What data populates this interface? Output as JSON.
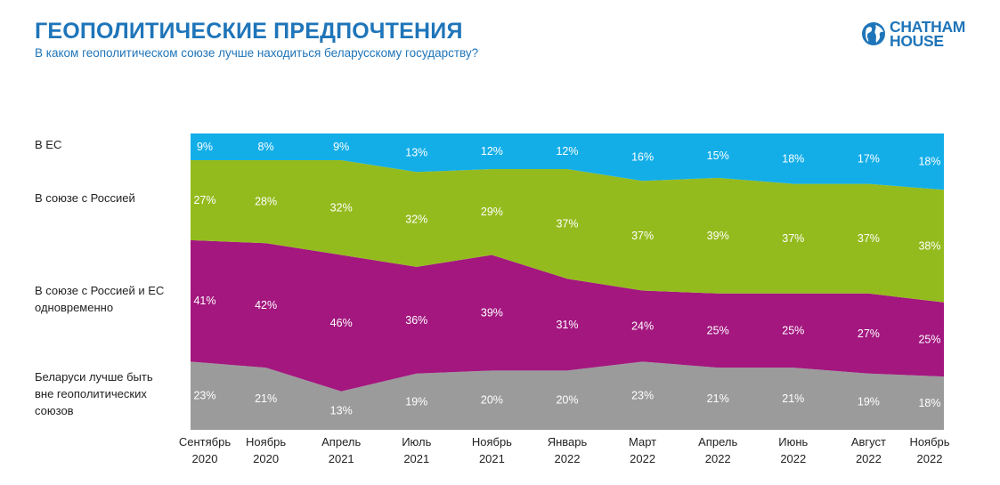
{
  "title": "ГЕОПОЛИТИЧЕСКИЕ ПРЕДПОЧТЕНИЯ",
  "subtitle": "В каком геополитическом союзе лучше находиться беларусскому государству?",
  "logo": {
    "line1": "CHATHAM",
    "line2": "HOUSE",
    "icon": "globe-icon",
    "color": "#1f75b9"
  },
  "chart_data": {
    "type": "area",
    "stacked": true,
    "categories": [
      [
        "Сентябрь",
        "2020"
      ],
      [
        "Ноябрь",
        "2020"
      ],
      [
        "Апрель",
        "2021"
      ],
      [
        "Июль",
        "2021"
      ],
      [
        "Ноябрь",
        "2021"
      ],
      [
        "Январь",
        "2022"
      ],
      [
        "Март",
        "2022"
      ],
      [
        "Апрель",
        "2022"
      ],
      [
        "Июнь",
        "2022"
      ],
      [
        "Август",
        "2022"
      ],
      [
        "Ноябрь",
        "2022"
      ]
    ],
    "series": [
      {
        "name": "Беларуси лучше быть вне геополитических союзов",
        "color": "#9b9b9b",
        "values": [
          23,
          21,
          13,
          19,
          20,
          20,
          23,
          21,
          21,
          19,
          18
        ]
      },
      {
        "name": "В союзе с Россией и ЕС одновременно",
        "color": "#a3177f",
        "values": [
          41,
          42,
          46,
          36,
          39,
          31,
          24,
          25,
          25,
          27,
          25
        ]
      },
      {
        "name": "В союзе с Россией",
        "color": "#94bb1d",
        "values": [
          27,
          28,
          32,
          32,
          29,
          37,
          37,
          39,
          37,
          37,
          38
        ]
      },
      {
        "name": "В ЕС",
        "color": "#13aee8",
        "values": [
          9,
          8,
          9,
          13,
          12,
          12,
          16,
          15,
          18,
          17,
          18
        ]
      }
    ],
    "value_suffix": "%",
    "legend_placement": "left"
  },
  "row_labels": [
    {
      "lines": [
        "В ЕС"
      ]
    },
    {
      "lines": [
        "В союзе с Россией"
      ]
    },
    {
      "lines": [
        "В союзе с Россией и ЕС",
        "одновременно"
      ]
    },
    {
      "lines": [
        "Беларуси лучше быть",
        "вне геополитических",
        "союзов"
      ]
    }
  ]
}
